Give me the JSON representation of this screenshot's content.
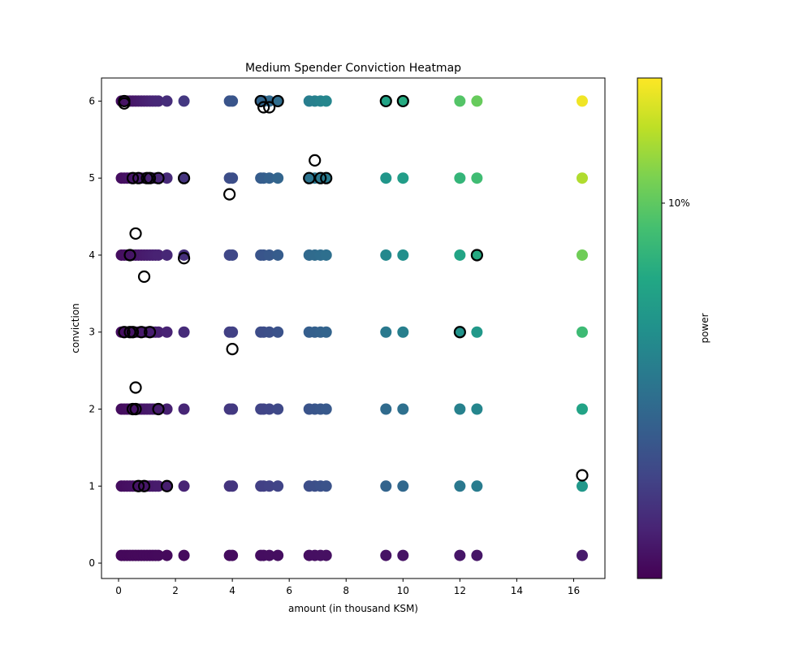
{
  "chart_data": {
    "type": "scatter",
    "title": "Medium Spender Conviction Heatmap",
    "xlabel": "amount (in thousand KSM)",
    "ylabel": "conviction",
    "xlim": [
      -0.6,
      17.1
    ],
    "ylim": [
      -0.2,
      6.3
    ],
    "x_ticks": [
      0,
      2,
      4,
      6,
      8,
      10,
      12,
      14,
      16
    ],
    "y_ticks": [
      0,
      1,
      2,
      3,
      4,
      5,
      6
    ],
    "grid": false,
    "colormap": "viridis",
    "colorbar": {
      "label": "power",
      "tick_label": "10%",
      "tick_fraction": 0.75
    },
    "x_values": [
      0.1,
      0.2,
      0.3,
      0.4,
      0.5,
      0.6,
      0.7,
      0.8,
      0.9,
      1.0,
      1.1,
      1.2,
      1.3,
      1.4,
      1.7,
      2.3,
      3.9,
      4.0,
      5.0,
      5.1,
      5.3,
      5.6,
      6.7,
      6.9,
      7.1,
      7.3,
      9.4,
      10.0,
      12.0,
      12.6,
      16.3
    ],
    "point_conviction_y": [
      {
        "conviction": 0,
        "y": 0.1,
        "color_boost": 0.0
      },
      {
        "conviction": 1,
        "y": 1.0,
        "color_boost": 0.05
      },
      {
        "conviction": 2,
        "y": 2.0,
        "color_boost": 0.1
      },
      {
        "conviction": 3,
        "y": 3.0,
        "color_boost": 0.2
      },
      {
        "conviction": 4,
        "y": 4.0,
        "color_boost": 0.3
      },
      {
        "conviction": 5,
        "y": 5.0,
        "color_boost": 0.4
      },
      {
        "conviction": 6,
        "y": 6.0,
        "color_boost": 0.5
      }
    ],
    "outlined_points": [
      {
        "x": 0.2,
        "y": 5.97
      },
      {
        "x": 0.2,
        "y": 6.0
      },
      {
        "x": 5.0,
        "y": 6.0
      },
      {
        "x": 5.1,
        "y": 5.92
      },
      {
        "x": 5.3,
        "y": 5.92
      },
      {
        "x": 5.6,
        "y": 6.0
      },
      {
        "x": 9.4,
        "y": 6.0
      },
      {
        "x": 10.0,
        "y": 6.0
      },
      {
        "x": 0.5,
        "y": 5.0
      },
      {
        "x": 0.7,
        "y": 5.0
      },
      {
        "x": 1.0,
        "y": 5.0
      },
      {
        "x": 1.1,
        "y": 5.0
      },
      {
        "x": 1.4,
        "y": 5.0
      },
      {
        "x": 2.3,
        "y": 5.0
      },
      {
        "x": 6.7,
        "y": 5.0
      },
      {
        "x": 7.1,
        "y": 5.0
      },
      {
        "x": 7.3,
        "y": 5.0
      },
      {
        "x": 6.9,
        "y": 5.23
      },
      {
        "x": 3.9,
        "y": 4.79
      },
      {
        "x": 0.6,
        "y": 4.28
      },
      {
        "x": 0.4,
        "y": 4.0
      },
      {
        "x": 2.3,
        "y": 3.96
      },
      {
        "x": 12.6,
        "y": 4.0
      },
      {
        "x": 0.9,
        "y": 3.72
      },
      {
        "x": 0.2,
        "y": 3.0
      },
      {
        "x": 0.4,
        "y": 3.0
      },
      {
        "x": 0.5,
        "y": 3.0
      },
      {
        "x": 0.8,
        "y": 3.0
      },
      {
        "x": 1.1,
        "y": 3.0
      },
      {
        "x": 12.0,
        "y": 3.0
      },
      {
        "x": 4.0,
        "y": 2.78
      },
      {
        "x": 0.6,
        "y": 2.28
      },
      {
        "x": 0.5,
        "y": 2.0
      },
      {
        "x": 0.6,
        "y": 2.0
      },
      {
        "x": 1.4,
        "y": 2.0
      },
      {
        "x": 16.3,
        "y": 1.14
      },
      {
        "x": 0.7,
        "y": 1.0
      },
      {
        "x": 0.9,
        "y": 1.0
      },
      {
        "x": 1.7,
        "y": 1.0
      }
    ]
  }
}
